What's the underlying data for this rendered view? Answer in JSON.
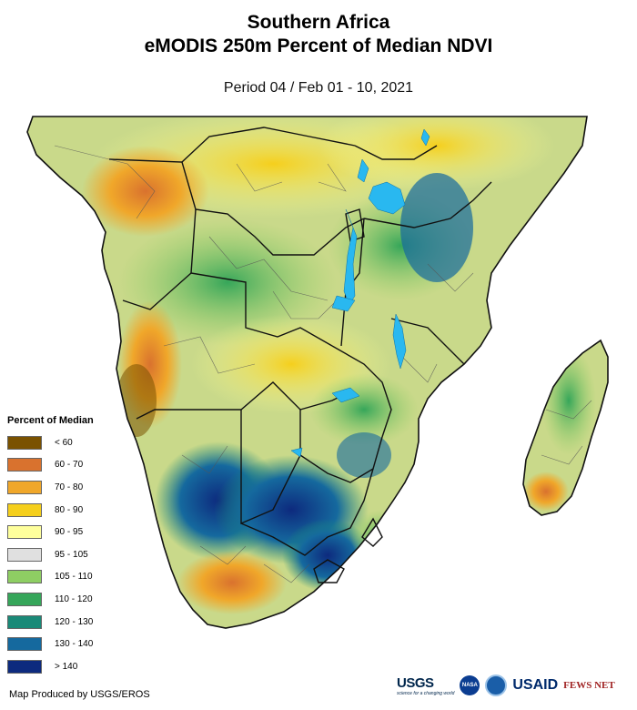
{
  "header": {
    "title_line1": "Southern Africa",
    "title_line2": "eMODIS 250m Percent of Median NDVI",
    "subtitle": "Period 04 / Feb 01 - 10, 2021"
  },
  "legend": {
    "title": "Percent of Median",
    "items": [
      {
        "label": "< 60",
        "color": "#7a5200"
      },
      {
        "label": "60 - 70",
        "color": "#d9722e"
      },
      {
        "label": "70 - 80",
        "color": "#f0a72a"
      },
      {
        "label": "80 - 90",
        "color": "#f5cf1c"
      },
      {
        "label": "90 - 95",
        "color": "#feff9c"
      },
      {
        "label": "95 - 105",
        "color": "#e0e0e0"
      },
      {
        "label": "105 - 110",
        "color": "#8ece63"
      },
      {
        "label": "110 - 120",
        "color": "#36a65a"
      },
      {
        "label": "120 - 130",
        "color": "#1a8a78"
      },
      {
        "label": "130 - 140",
        "color": "#15699e"
      },
      {
        "label": "> 140",
        "color": "#0d2a7e"
      }
    ]
  },
  "footer": {
    "credit": "Map Produced by USGS/EROS",
    "logos": {
      "usgs": "USGS",
      "usgs_tagline": "science for a changing world",
      "nasa": "NASA",
      "usaid": "USAID",
      "fews": "FEWS NET"
    }
  },
  "colors": {
    "water": "#29b8f0",
    "border": "#111111",
    "admin": "#555555",
    "background": "#ffffff"
  }
}
